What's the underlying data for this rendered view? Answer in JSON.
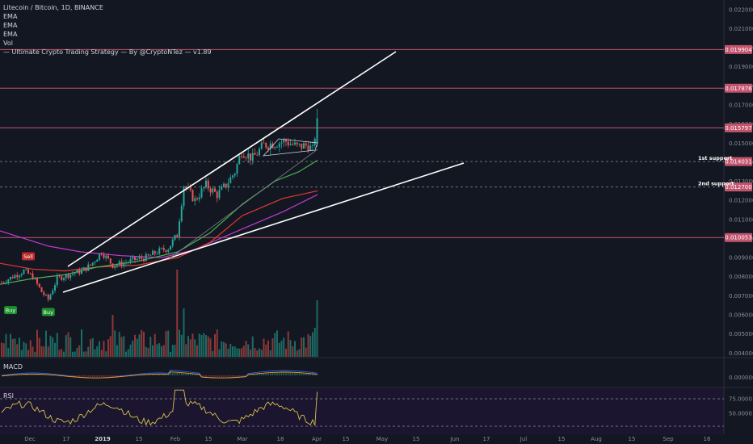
{
  "legend": {
    "title": "Litecoin / Bitcoin, 1D, BINANCE",
    "indicators": [
      "EMA",
      "EMA",
      "EMA",
      "Vol",
      "— Ultimate Crypto Trading Strategy — By @CryptoNTez — v1.89"
    ]
  },
  "panes": {
    "macd": "MACD",
    "rsi": "RSI"
  },
  "colors": {
    "background": "#131722",
    "bull": "#26a69a",
    "bear": "#ef5350",
    "trend": "#ffffff",
    "resistance": "#c2546e",
    "ema_green": "#4caf50",
    "ema_red": "#e53935",
    "ema_magenta": "#c03bd0",
    "rsi": "#d4c24a"
  },
  "chart_data": {
    "type": "candlestick",
    "title": "Litecoin / Bitcoin, 1D, BINANCE",
    "x_ticks": [
      "Dec",
      "17",
      "2019",
      "15",
      "Feb",
      "15",
      "Mar",
      "18",
      "Apr",
      "15",
      "May",
      "15",
      "Jun",
      "17",
      "Jul",
      "15",
      "Aug",
      "15",
      "Sep",
      "16"
    ],
    "y_ticks": [
      "0.022000",
      "0.021000",
      "0.020000",
      "0.019000",
      "0.018000",
      "0.017000",
      "0.016000",
      "0.015000",
      "0.014000",
      "0.013000",
      "0.012000",
      "0.011000",
      "0.010000",
      "0.009000",
      "0.008000",
      "0.007000",
      "0.006000",
      "0.005000",
      "0.004000"
    ],
    "ylim": [
      0.0038,
      0.0225
    ],
    "horizontal_levels": [
      {
        "value": 0.019904,
        "label": "0.019904",
        "style": "solid"
      },
      {
        "value": 0.017876,
        "label": "0.017876",
        "style": "solid"
      },
      {
        "value": 0.015797,
        "label": "0.015797",
        "style": "solid"
      },
      {
        "value": 0.014031,
        "label": "0.014031",
        "style": "dashed",
        "annotation": "1st support"
      },
      {
        "value": 0.0127,
        "label": "0.012700",
        "style": "dashed",
        "annotation": "2nd support"
      },
      {
        "value": 0.010053,
        "label": "0.010053",
        "style": "solid"
      }
    ],
    "signals": [
      {
        "label": "Buy",
        "x": -2,
        "price": 0.0068
      },
      {
        "label": "Sell",
        "x": 12,
        "price": 0.0086
      },
      {
        "label": "Buy",
        "x": 21,
        "price": 0.0067
      }
    ],
    "macd_ticks": [
      "0.000000"
    ],
    "rsi_ticks": [
      "75.0000",
      "50.0000"
    ]
  }
}
